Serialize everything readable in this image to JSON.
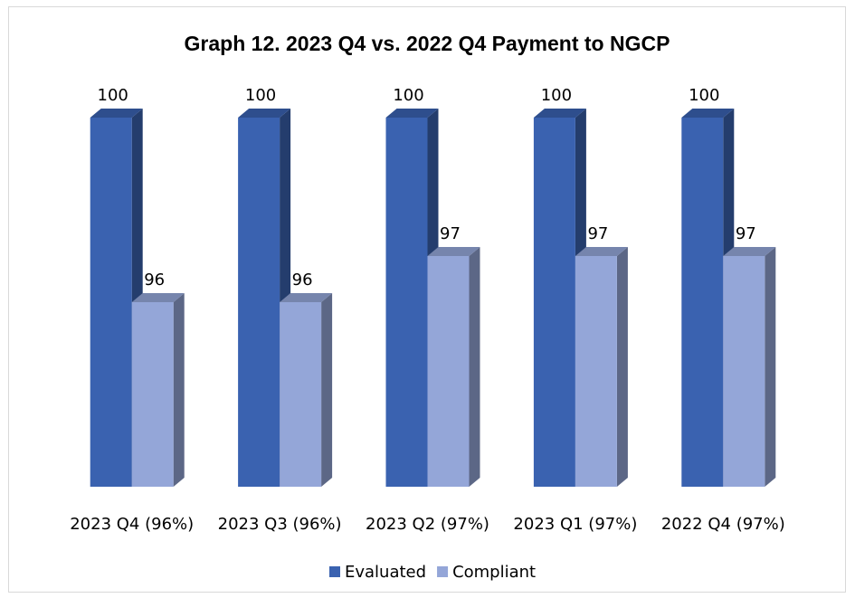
{
  "chart_data": {
    "type": "bar3d",
    "title": "Graph 12. 2023 Q4 vs. 2022 Q4 Payment to NGCP",
    "categories": [
      "2023 Q4 (96%)",
      "2023 Q3 (96%)",
      "2023 Q2 (97%)",
      "2023 Q1 (97%)",
      "2022 Q4 (97%)"
    ],
    "series": [
      {
        "name": "Evaluated",
        "color": "#3a62b0",
        "values": [
          100,
          100,
          100,
          100,
          100
        ]
      },
      {
        "name": "Compliant",
        "color": "#94a6d8",
        "values": [
          96,
          96,
          97,
          97,
          97
        ]
      }
    ],
    "ylim": [
      92,
      100
    ],
    "legend": "bottom"
  }
}
